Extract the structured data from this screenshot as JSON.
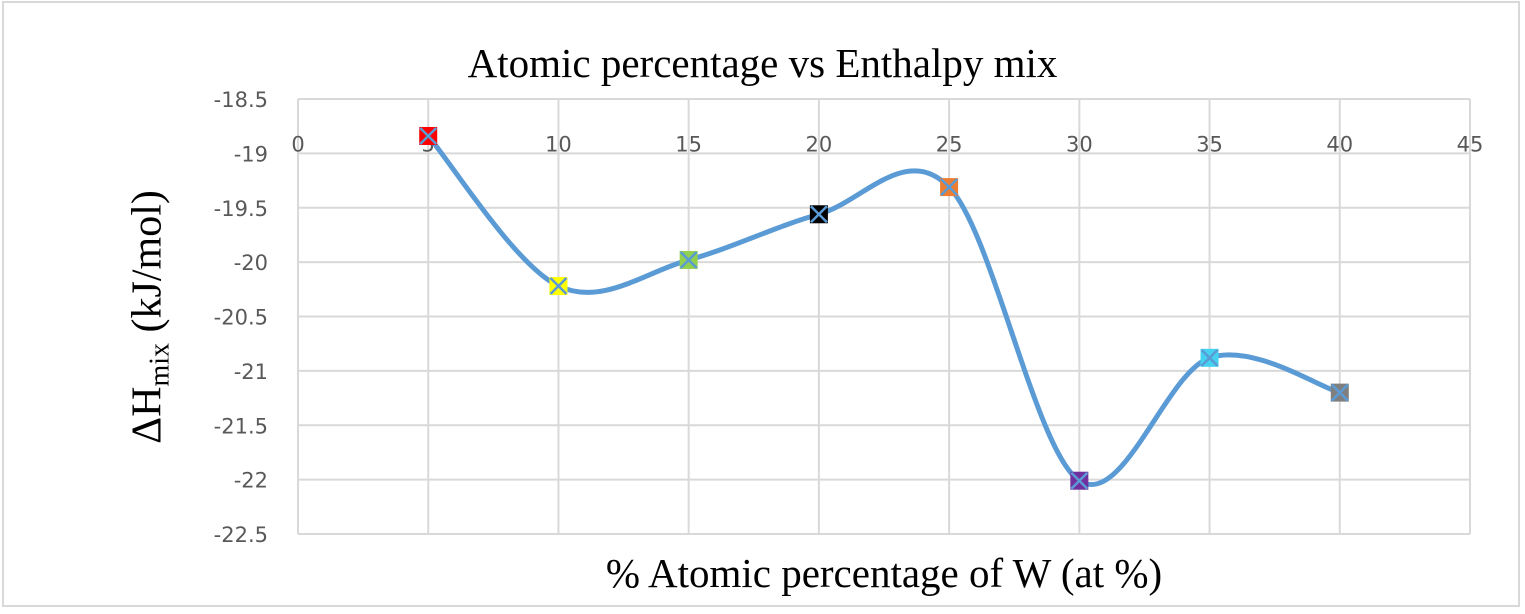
{
  "chart_data": {
    "type": "line",
    "title": "Atomic percentage vs Enthalpy mix",
    "xlabel": "% Atomic percentage of W (at %)",
    "ylabel": "ΔHmix (kJ/mol)",
    "ylabel_main": "ΔH",
    "ylabel_sub": "mix",
    "ylabel_unit": " (kJ/mol)",
    "xlim": [
      0,
      45
    ],
    "ylim": [
      -22.5,
      -18.5
    ],
    "x_ticks": [
      0,
      5,
      10,
      15,
      20,
      25,
      30,
      35,
      40,
      45
    ],
    "y_ticks": [
      -18.5,
      -19,
      -19.5,
      -20,
      -20.5,
      -21,
      -21.5,
      -22,
      -22.5
    ],
    "x_axis_position": "crosses at y=-19 (labels drawn inside plot)",
    "grid": true,
    "smooth": true,
    "legend": null,
    "series": [
      {
        "name": "ΔHmix",
        "line_color": "#5B9BD5",
        "x": [
          5,
          10,
          15,
          20,
          25,
          30,
          35,
          40
        ],
        "values": [
          -18.84,
          -20.22,
          -19.98,
          -19.56,
          -19.31,
          -22.01,
          -20.88,
          -21.2
        ],
        "marker": "square-x",
        "marker_colors": [
          "#FF0000",
          "#FFFF00",
          "#92D050",
          "#000000",
          "#ED7D31",
          "#7030A0",
          "#45D2F0",
          "#7F7F7F"
        ]
      }
    ]
  },
  "colors": {
    "grid": "#d9d9d9",
    "tick_text": "#595959",
    "line": "#5B9BD5",
    "marker_cross": "#5B9BD5"
  }
}
